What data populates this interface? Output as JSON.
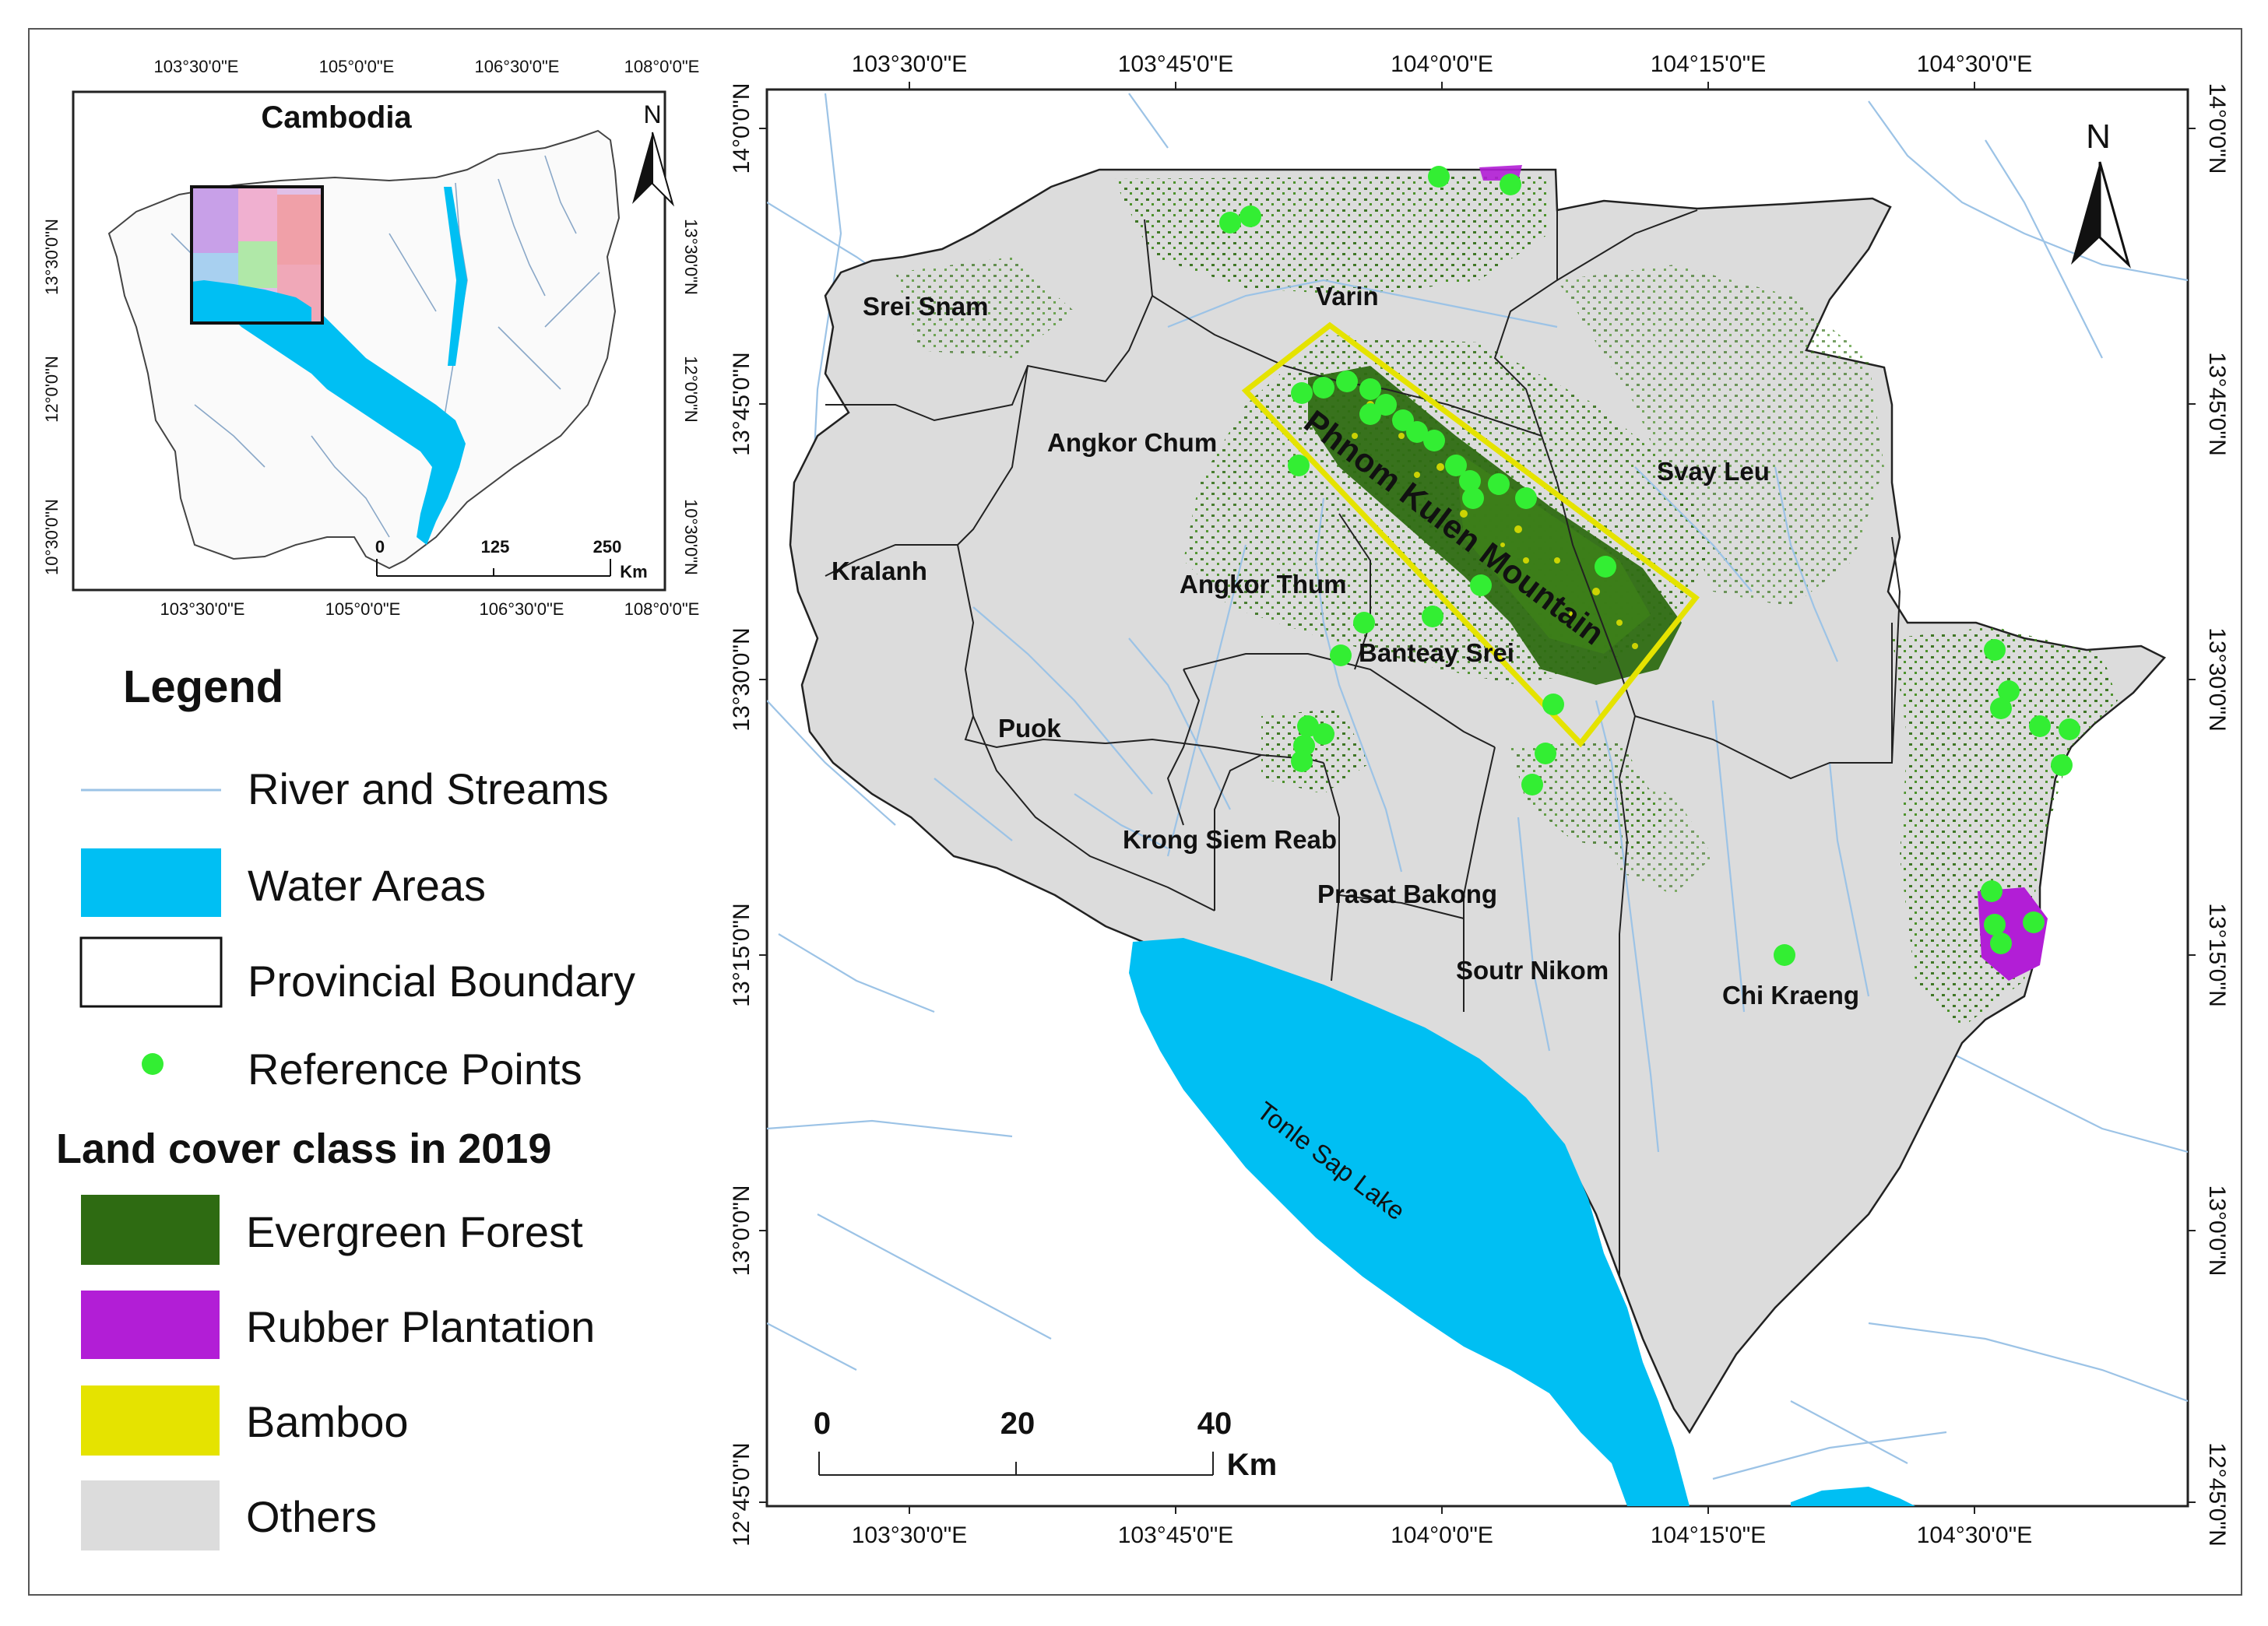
{
  "inset": {
    "title": "Cambodia",
    "north": "N",
    "top_lon_labels": [
      "103°30'0\"E",
      "105°0'0\"E",
      "106°30'0\"E",
      "108°0'0\"E"
    ],
    "bottom_lon_labels": [
      "103°30'0\"E",
      "105°0'0\"E",
      "106°30'0\"E",
      "108°0'0\"E"
    ],
    "left_lat_labels": [
      "13°30'0\"N",
      "12°0'0\"N",
      "10°30'0\"N"
    ],
    "right_lat_labels": [
      "13°30'0\"N",
      "12°0'0\"N",
      "10°30'0\"N"
    ],
    "scale_labels": [
      "0",
      "125",
      "250"
    ],
    "scale_unit": "Km"
  },
  "legend": {
    "title": "Legend",
    "items": [
      "River and Streams",
      "Water Areas",
      "Provincial  Boundary",
      "Reference Points"
    ],
    "landcover_title": "Land cover class in 2019",
    "classes": [
      "Evergreen Forest",
      "Rubber Plantation",
      "Bamboo",
      "Others"
    ]
  },
  "colors": {
    "water": "#00bff3",
    "river": "#9cc3e6",
    "evergreen": "#2e6b12",
    "rubber": "#b21ed6",
    "bamboo": "#e5e300",
    "others": "#dcdcdc",
    "point": "#33ee33"
  },
  "map": {
    "north": "N",
    "top_lon_labels": [
      "103°30'0\"E",
      "103°45'0\"E",
      "104°0'0\"E",
      "104°15'0\"E",
      "104°30'0\"E"
    ],
    "bottom_lon_labels": [
      "103°30'0\"E",
      "103°45'0\"E",
      "104°0'0\"E",
      "104°15'0\"E",
      "104°30'0\"E"
    ],
    "left_lat_labels": [
      "14°0'0\"N",
      "13°45'0\"N",
      "13°30'0\"N",
      "13°15'0\"N",
      "13°0'0\"N",
      "12°45'0\"N"
    ],
    "right_lat_labels": [
      "14°0'0\"N",
      "13°45'0\"N",
      "13°30'0\"N",
      "13°15'0\"N",
      "13°0'0\"N",
      "12°45'0\"N"
    ],
    "scale_labels": [
      "0",
      "20",
      "40"
    ],
    "scale_unit": "Km",
    "districts": [
      "Srei Snam",
      "Varin",
      "Angkor Chum",
      "Svay Leu",
      "Kralanh",
      "Angkor Thum",
      "Banteay Srei",
      "Puok",
      "Krong Siem Reab",
      "Prasat Bakong",
      "Soutr Nikom",
      "Chi Kraeng"
    ],
    "mountain_label": "Phnom Kulen Mountain",
    "lake_label": "Tonle Sap Lake"
  }
}
